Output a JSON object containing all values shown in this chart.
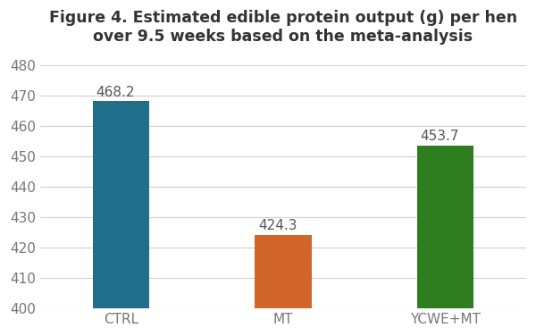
{
  "categories": [
    "CTRL",
    "MT",
    "YCWE+MT"
  ],
  "values": [
    468.2,
    424.3,
    453.7
  ],
  "bar_colors": [
    "#1f6f8b",
    "#d2652a",
    "#2e7d1e"
  ],
  "title_line1": "Figure 4. Estimated edible protein output (g) per hen",
  "title_line2": "over 9.5 weeks based on the meta-analysis",
  "ylim": [
    400,
    484
  ],
  "yticks": [
    400,
    410,
    420,
    430,
    440,
    450,
    460,
    470,
    480
  ],
  "background_color": "#ffffff",
  "plot_bg_color": "#ffffff",
  "grid_color": "#d0d0d0",
  "bar_width": 0.35,
  "label_fontsize": 11,
  "title_fontsize": 12.5,
  "tick_fontsize": 11,
  "value_label_fontsize": 11,
  "value_label_color": "#555555",
  "tick_label_color": "#777777",
  "title_color": "#333333"
}
